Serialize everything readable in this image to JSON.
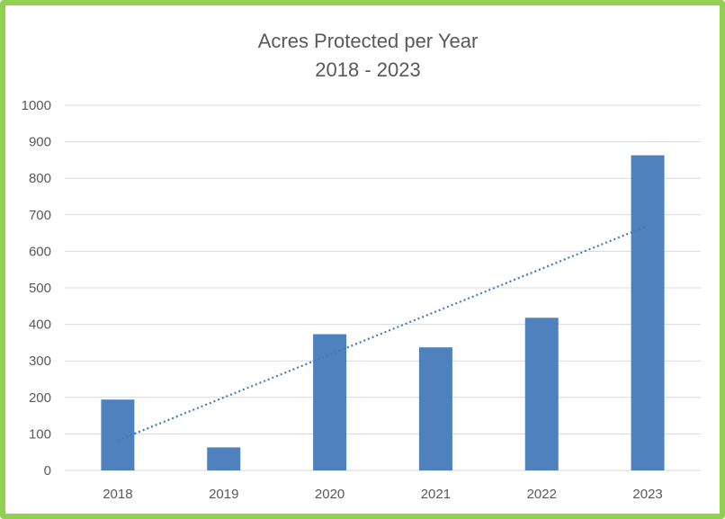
{
  "chart_data": {
    "type": "bar",
    "title": "Acres Protected per Year",
    "subtitle": "2018 - 2023",
    "categories": [
      "2018",
      "2019",
      "2020",
      "2021",
      "2022",
      "2023"
    ],
    "series": [
      {
        "values": [
          194,
          63,
          373,
          337,
          418,
          863
        ]
      }
    ],
    "ylim": [
      0,
      1000
    ],
    "yticks": [
      "0",
      "100",
      "200",
      "300",
      "400",
      "500",
      "600",
      "700",
      "800",
      "900",
      "1000"
    ],
    "trendline": {
      "type": "linear",
      "style": "dotted",
      "start": 82,
      "end": 670
    },
    "grid": true,
    "legend": "none",
    "colors": {
      "bar": "#4f81bd",
      "trendline": "#3d7ebf",
      "gridline": "#d9d9d9",
      "border": "#92d050"
    }
  }
}
